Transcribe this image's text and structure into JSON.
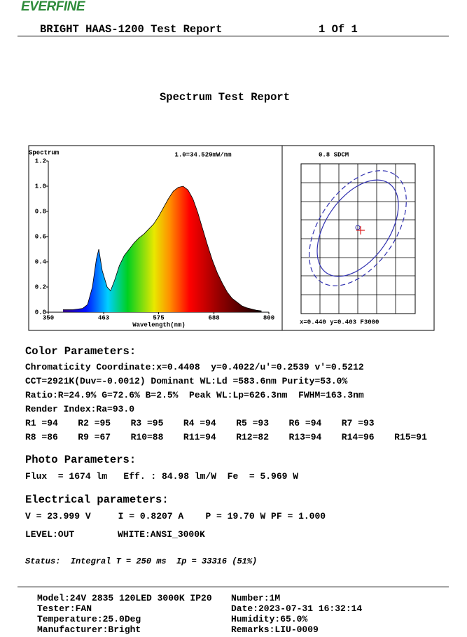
{
  "header": {
    "logo": "EVERFINE",
    "title": "BRIGHT HAAS-1200 Test Report",
    "page": "1 Of 1"
  },
  "report_title": "Spectrum Test Report",
  "chart_data": {
    "type": "area",
    "title": "Spectrum",
    "annotation": "1.0=34.529mW/nm",
    "x_label": "Wavelength(nm)",
    "x": [
      380,
      400,
      420,
      430,
      440,
      448,
      453,
      460,
      470,
      477,
      485,
      495,
      505,
      515,
      525,
      535,
      545,
      555,
      565,
      575,
      585,
      595,
      605,
      615,
      625,
      635,
      645,
      655,
      665,
      675,
      685,
      695,
      705,
      715,
      725,
      735,
      745,
      755,
      765,
      775,
      785
    ],
    "values": [
      0.02,
      0.02,
      0.03,
      0.06,
      0.2,
      0.42,
      0.5,
      0.33,
      0.2,
      0.17,
      0.25,
      0.37,
      0.45,
      0.5,
      0.55,
      0.59,
      0.62,
      0.66,
      0.7,
      0.76,
      0.83,
      0.9,
      0.96,
      0.99,
      1.0,
      0.97,
      0.9,
      0.79,
      0.66,
      0.53,
      0.41,
      0.31,
      0.23,
      0.16,
      0.11,
      0.08,
      0.05,
      0.035,
      0.025,
      0.015,
      0.01
    ],
    "xlim": [
      350,
      800
    ],
    "xticks": [
      350,
      463,
      575,
      688,
      800
    ],
    "ylim": [
      0,
      1.2
    ],
    "yticks": [
      {
        "value": 0,
        "label": "0.0"
      },
      0.2,
      0.4,
      0.6,
      0.8,
      {
        "value": 1,
        "label": "1.0"
      },
      1.2
    ],
    "color": "#000000"
  },
  "sdcm": {
    "title": "0.8 SDCM",
    "coords": "x=0.440 y=0.403 F3000"
  },
  "color_params": {
    "heading": "Color Parameters:",
    "lines": [
      "Chromaticity Coordinate:x=0.4408  y=0.4022/u'=0.2539 v'=0.5212",
      "CCT=2921K(Duv=-0.0012) Dominant WL:Ld =583.6nm Purity=53.0%",
      "Ratio:R=24.9% G=72.6% B=2.5%  Peak WL:Lp=626.3nm  FWHM=163.3nm",
      "Render Index:Ra=93.0"
    ],
    "render": [
      [
        "R1 =94",
        "R2 =95",
        "R3 =95",
        "R4 =94",
        "R5 =93",
        "R6 =94",
        "R7 =93"
      ],
      [
        "R8 =86",
        "R9 =67",
        "R10=88",
        "R11=94",
        "R12=82",
        "R13=94",
        "R14=96",
        "R15=91"
      ]
    ]
  },
  "photo_params": {
    "heading": "Photo Parameters:",
    "line": "Flux  = 1674 lm   Eff. : 84.98 lm/W  Fe  = 5.969 W"
  },
  "electrical_params": {
    "heading": "Electrical parameters:",
    "line": "V = 23.999 V     I = 0.8207 A    P = 19.70 W PF = 1.000",
    "level": "LEVEL:OUT",
    "white": "WHITE:ANSI_3000K"
  },
  "status": "Status:  Integral T = 250 ms  Ip = 33316 (51%)",
  "footer": [
    [
      "Model:24V 2835 120LED 3000K IP20",
      "Number:1M"
    ],
    [
      "Tester:FAN",
      "Date:2023-07-31 16:32:14"
    ],
    [
      "Temperature:25.0Deg",
      "Humidity:65.0%"
    ],
    [
      "Manufacturer:Bright",
      "Remarks:LIU-0009"
    ]
  ]
}
